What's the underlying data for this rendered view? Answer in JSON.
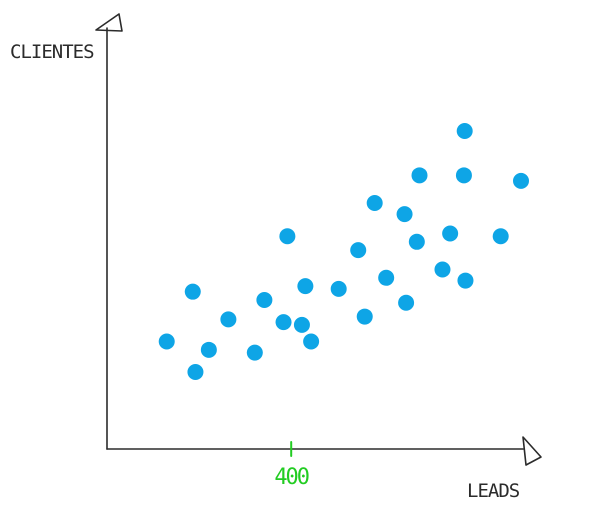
{
  "chart_data": {
    "type": "scatter",
    "xlabel": "LEADS",
    "ylabel": "CLIENTES",
    "x_ticks": [
      {
        "value": 400,
        "label": "400"
      }
    ],
    "xlim": [
      0,
      1000
    ],
    "ylim": [
      0,
      100
    ],
    "grid": false,
    "legend": "none",
    "point_color": "#0ea5e6",
    "tick_color": "#22cc22",
    "axis_color": "#2b2b2b",
    "series": [
      {
        "points": [
          {
            "x": 75,
            "y": 24
          },
          {
            "x": 150,
            "y": 13
          },
          {
            "x": 143,
            "y": 42
          },
          {
            "x": 185,
            "y": 21
          },
          {
            "x": 236,
            "y": 32
          },
          {
            "x": 305,
            "y": 20
          },
          {
            "x": 330,
            "y": 39
          },
          {
            "x": 380,
            "y": 31
          },
          {
            "x": 390,
            "y": 62
          },
          {
            "x": 428,
            "y": 30
          },
          {
            "x": 437,
            "y": 44
          },
          {
            "x": 452,
            "y": 24
          },
          {
            "x": 524,
            "y": 43
          },
          {
            "x": 575,
            "y": 57
          },
          {
            "x": 592,
            "y": 33
          },
          {
            "x": 618,
            "y": 74
          },
          {
            "x": 648,
            "y": 47
          },
          {
            "x": 700,
            "y": 38
          },
          {
            "x": 696,
            "y": 70
          },
          {
            "x": 728,
            "y": 60
          },
          {
            "x": 735,
            "y": 84
          },
          {
            "x": 795,
            "y": 50
          },
          {
            "x": 815,
            "y": 63
          },
          {
            "x": 855,
            "y": 46
          },
          {
            "x": 853,
            "y": 100
          },
          {
            "x": 851,
            "y": 84
          },
          {
            "x": 947,
            "y": 62
          },
          {
            "x": 1000,
            "y": 82
          }
        ]
      }
    ]
  }
}
